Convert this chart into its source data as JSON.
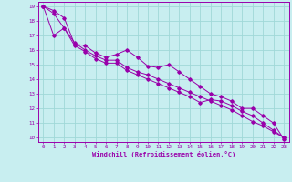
{
  "xlabel": "Windchill (Refroidissement éolien,°C)",
  "xlim": [
    -0.5,
    23.5
  ],
  "ylim": [
    9.7,
    19.3
  ],
  "xticks": [
    0,
    1,
    2,
    3,
    4,
    5,
    6,
    7,
    8,
    9,
    10,
    11,
    12,
    13,
    14,
    15,
    16,
    17,
    18,
    19,
    20,
    21,
    22,
    23
  ],
  "yticks": [
    10,
    11,
    12,
    13,
    14,
    15,
    16,
    17,
    18,
    19
  ],
  "bg_color": "#c8eef0",
  "line_color": "#9900aa",
  "grid_color": "#a0d8d8",
  "lines": [
    {
      "x": [
        0,
        1,
        2,
        3,
        4,
        5,
        6,
        7,
        8,
        9,
        10,
        11,
        12,
        13,
        14,
        15,
        16,
        17,
        18,
        19,
        20,
        21,
        22,
        23
      ],
      "y": [
        19.0,
        18.7,
        18.2,
        16.4,
        16.3,
        15.8,
        15.5,
        15.7,
        16.0,
        15.5,
        14.9,
        14.8,
        15.0,
        14.5,
        14.0,
        13.5,
        13.0,
        12.8,
        12.5,
        12.0,
        12.0,
        11.5,
        11.0,
        9.9
      ]
    },
    {
      "x": [
        0,
        1,
        2,
        3,
        4,
        5,
        6,
        7,
        8,
        9,
        10,
        11,
        12,
        13,
        14,
        15,
        16,
        17,
        18,
        19,
        20,
        21,
        22,
        23
      ],
      "y": [
        19.0,
        18.5,
        17.5,
        16.5,
        16.0,
        15.6,
        15.3,
        15.3,
        14.8,
        14.5,
        14.3,
        14.0,
        13.7,
        13.4,
        13.1,
        12.8,
        12.5,
        12.2,
        11.9,
        11.5,
        11.1,
        10.8,
        10.4,
        10.0
      ]
    },
    {
      "x": [
        0,
        1,
        2,
        3,
        4,
        5,
        6,
        7,
        8,
        9,
        10,
        11,
        12,
        13,
        14,
        15,
        16,
        17,
        18,
        19,
        20,
        21,
        22,
        23
      ],
      "y": [
        19.0,
        17.0,
        17.5,
        16.3,
        15.9,
        15.4,
        15.1,
        15.1,
        14.6,
        14.3,
        14.0,
        13.7,
        13.4,
        13.1,
        12.8,
        12.4,
        12.6,
        12.5,
        12.2,
        11.8,
        11.5,
        11.0,
        10.5,
        10.0
      ]
    }
  ]
}
